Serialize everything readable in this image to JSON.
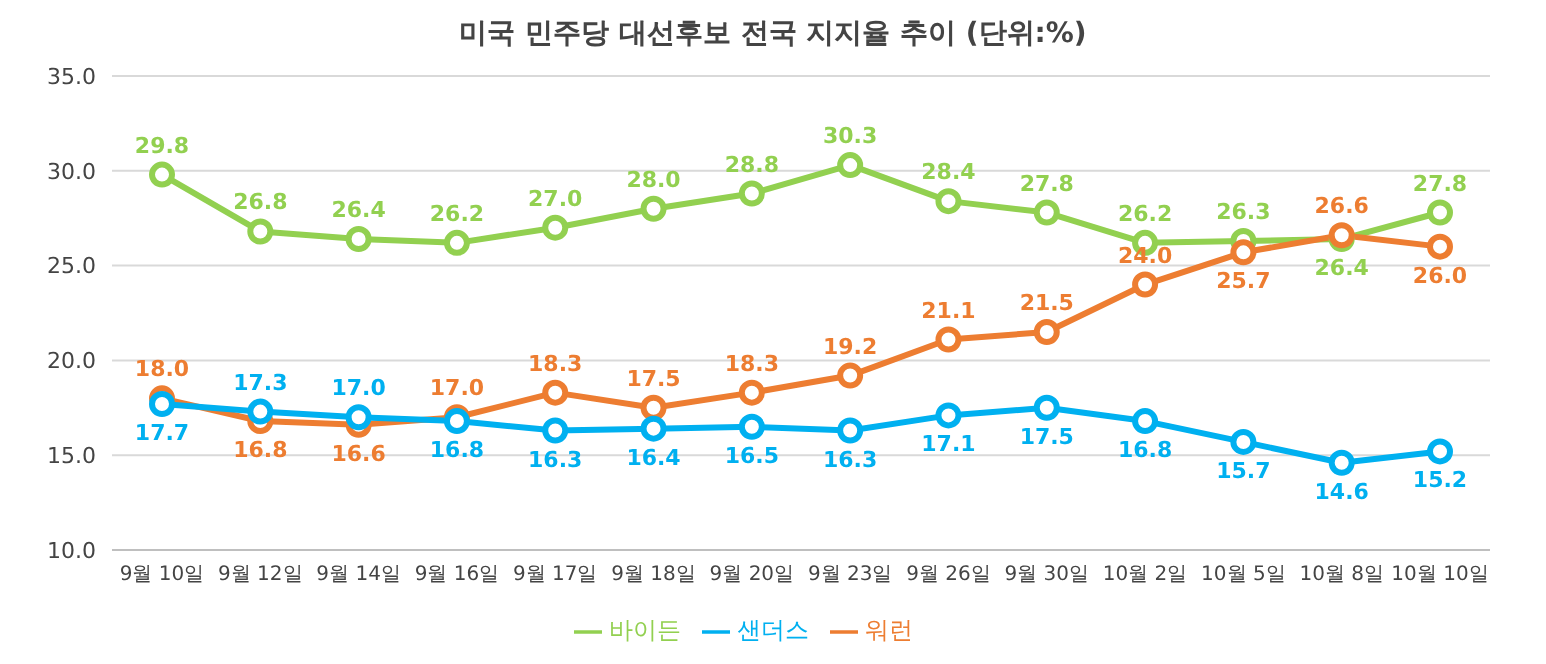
{
  "chart_data": {
    "type": "line",
    "title": "미국 민주당 대선후보 전국 지지율 추이 (단위:%)",
    "categories": [
      "9월 10일",
      "9월 12일",
      "9월 14일",
      "9월 16일",
      "9월 17일",
      "9월 18일",
      "9월 20일",
      "9월 23일",
      "9월 26일",
      "9월 30일",
      "10월 2일",
      "10월 5일",
      "10월 8일",
      "10월 10일"
    ],
    "series": [
      {
        "name": "바이든",
        "color": "#92d050",
        "values": [
          29.8,
          26.8,
          26.4,
          26.2,
          27.0,
          28.0,
          28.8,
          30.3,
          28.4,
          27.8,
          26.2,
          26.3,
          26.4,
          27.8
        ],
        "value_labels": [
          "29.8",
          "26.8",
          "26.4",
          "26.2",
          "27.0",
          "28.0",
          "28.8",
          "30.3",
          "28.4",
          "27.8",
          "26.2",
          "26.3",
          "26.4",
          "27.8"
        ]
      },
      {
        "name": "워런",
        "color": "#ed7d31",
        "values": [
          18.0,
          16.8,
          16.6,
          17.0,
          18.3,
          17.5,
          18.3,
          19.2,
          21.1,
          21.5,
          24.0,
          25.7,
          26.6,
          26.0
        ],
        "value_labels": [
          "18.0",
          "16.8",
          "16.6",
          "17.0",
          "18.3",
          "17.5",
          "18.3",
          "19.2",
          "21.1",
          "21.5",
          "24.0",
          "25.7",
          "26.6",
          "26.0"
        ]
      },
      {
        "name": "샌더스",
        "color": "#00b0f0",
        "values": [
          17.7,
          17.3,
          17.0,
          16.8,
          16.3,
          16.4,
          16.5,
          16.3,
          17.1,
          17.5,
          16.8,
          15.7,
          14.6,
          15.2
        ],
        "value_labels": [
          "17.7",
          "17.3",
          "17.0",
          "16.8",
          "16.3",
          "16.4",
          "16.5",
          "16.3",
          "17.1",
          "17.5",
          "16.8",
          "15.7",
          "14.6",
          "15.2"
        ]
      }
    ],
    "ylim": [
      10,
      35
    ],
    "yticks": [
      {
        "value": 10,
        "label": "10.0"
      },
      {
        "value": 15,
        "label": "15.0"
      },
      {
        "value": 20,
        "label": "20.0"
      },
      {
        "value": 25,
        "label": "25.0"
      },
      {
        "value": 30,
        "label": "30.0"
      },
      {
        "value": 35,
        "label": "35.0"
      }
    ],
    "grid": "y",
    "legend": "bottom",
    "marker": "circle",
    "line_style": "solid"
  }
}
